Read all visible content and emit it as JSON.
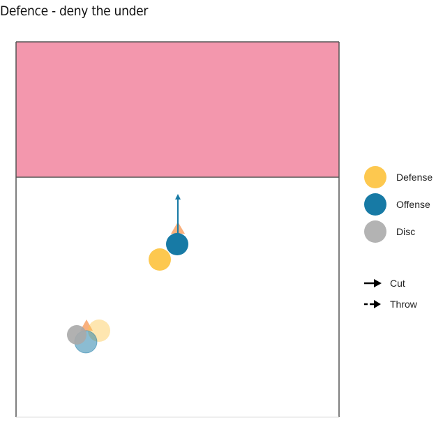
{
  "title": "Defence - deny the under",
  "colors": {
    "endzone": "#f397ad",
    "field_line": "#555555",
    "defense": "#fdc84f",
    "offense": "#177aa5",
    "disc": "#b3b3b3",
    "cone": "#f9b07d"
  },
  "legend": {
    "players": [
      {
        "label": "Defense",
        "color": "#fdc84f"
      },
      {
        "label": "Offense",
        "color": "#177aa5"
      },
      {
        "label": "Disc",
        "color": "#b3b3b3"
      }
    ],
    "lines": [
      {
        "label": "Cut",
        "style": "solid-arrow"
      },
      {
        "label": "Throw",
        "style": "dashed-arrow"
      }
    ]
  }
}
